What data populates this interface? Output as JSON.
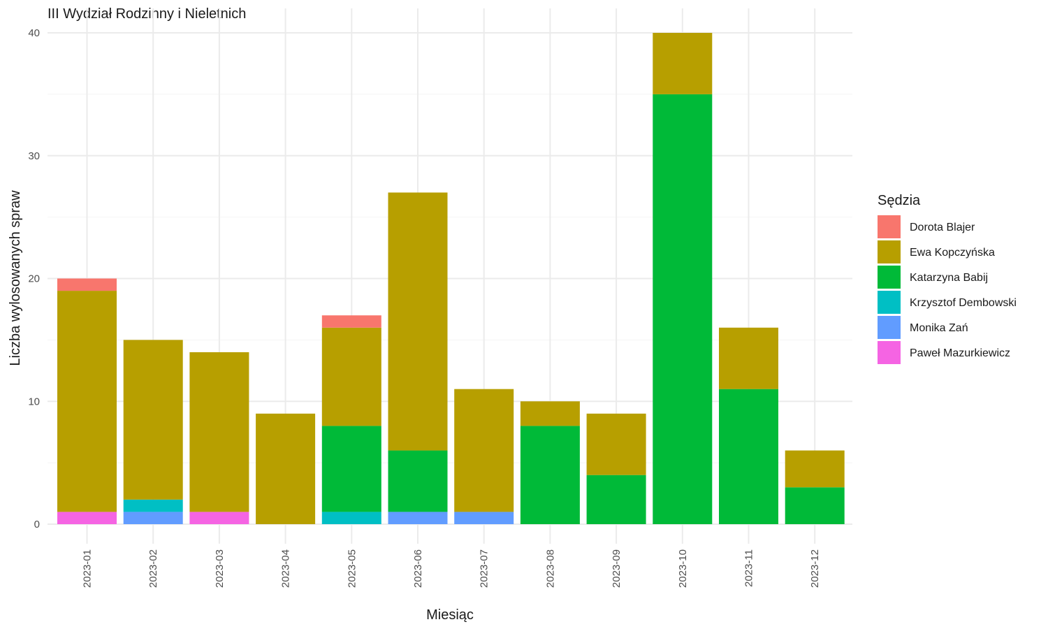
{
  "chart_data": {
    "type": "bar",
    "stacked": true,
    "title": "III Wydział Rodzinny i Nieletnich",
    "xlabel": "Miesiąc",
    "ylabel": "Liczba wylosowanych spraw",
    "ylim": [
      0,
      40
    ],
    "yticks": [
      0,
      10,
      20,
      30,
      40
    ],
    "grid": true,
    "legend_title": "Sędzia",
    "legend_position": "right",
    "categories": [
      "2023-01",
      "2023-02",
      "2023-03",
      "2023-04",
      "2023-05",
      "2023-06",
      "2023-07",
      "2023-08",
      "2023-09",
      "2023-10",
      "2023-11",
      "2023-12"
    ],
    "stack_order": [
      "Paweł Mazurkiewicz",
      "Monika Zań",
      "Krzysztof Dembowski",
      "Katarzyna Babij",
      "Ewa Kopczyńska",
      "Dorota Blajer"
    ],
    "series": [
      {
        "name": "Dorota Blajer",
        "color": "#F8766D",
        "values": [
          1,
          0,
          0,
          0,
          1,
          0,
          0,
          0,
          0,
          0,
          0,
          0
        ]
      },
      {
        "name": "Ewa Kopczyńska",
        "color": "#B79F00",
        "values": [
          18,
          13,
          13,
          9,
          8,
          21,
          10,
          2,
          5,
          5,
          5,
          3
        ]
      },
      {
        "name": "Katarzyna Babij",
        "color": "#00BA38",
        "values": [
          0,
          0,
          0,
          0,
          7,
          5,
          0,
          8,
          4,
          35,
          11,
          3
        ]
      },
      {
        "name": "Krzysztof Dembowski",
        "color": "#00BFC4",
        "values": [
          0,
          1,
          0,
          0,
          1,
          0,
          0,
          0,
          0,
          0,
          0,
          0
        ]
      },
      {
        "name": "Monika Zań",
        "color": "#619CFF",
        "values": [
          0,
          1,
          0,
          0,
          0,
          1,
          1,
          0,
          0,
          0,
          0,
          0
        ]
      },
      {
        "name": "Paweł Mazurkiewicz",
        "color": "#F564E3",
        "values": [
          1,
          0,
          1,
          0,
          0,
          0,
          0,
          0,
          0,
          0,
          0,
          0
        ]
      }
    ]
  }
}
